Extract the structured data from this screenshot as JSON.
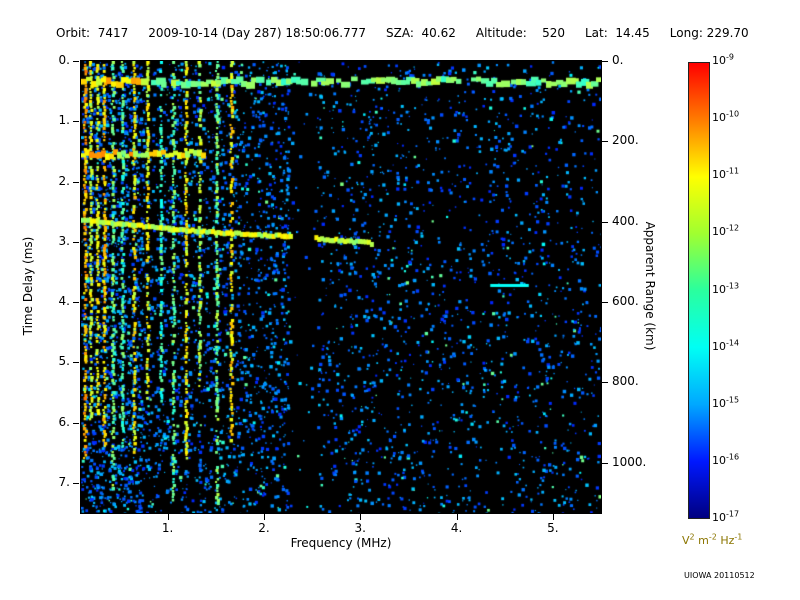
{
  "header": {
    "fields": [
      "Orbit:  7417",
      "2009-10-14 (Day 287) 18:50:06.777",
      "SZA:  40.62",
      "Altitude:    520",
      "Lat:  14.45",
      "Long: 229.70"
    ]
  },
  "footer": {
    "credit": "UIOWA 20110512"
  },
  "chart_data": {
    "type": "heatmap",
    "description": "Radar sounder ionogram: received spectral density vs frequency and time delay",
    "xlabel": "Frequency (MHz)",
    "ylabel_left": "Time Delay (ms)",
    "ylabel_right": "Apparent Range (km)",
    "xlim": [
      0.1,
      5.5
    ],
    "ylim_left": [
      0,
      7.5
    ],
    "ylim_right": [
      0,
      1125
    ],
    "x_tick_labels": [
      "1.",
      "2.",
      "3.",
      "4.",
      "5."
    ],
    "y_tick_labels_left": [
      "0.",
      "1.",
      "2.",
      "3.",
      "4.",
      "5.",
      "6.",
      "7."
    ],
    "y_tick_labels_right": [
      "0.",
      "200.",
      "400.",
      "600.",
      "800.",
      "1000."
    ],
    "grid": false,
    "colorbar": {
      "tick_base": "10",
      "tick_exponents": [
        "-9",
        "-10",
        "-11",
        "-12",
        "-13",
        "-14",
        "-15",
        "-16",
        "-17"
      ],
      "unit_parts": [
        {
          "t": "V",
          "s": "2"
        },
        {
          "t": "m",
          "s": "-2"
        },
        {
          "t": "Hz",
          "s": "-1"
        }
      ],
      "unit_color": "#8b7500",
      "gradient_bottom_to_top": [
        "#000080",
        "#0018ff",
        "#00a8ff",
        "#00fff4",
        "#2aff9e",
        "#a0ff30",
        "#ffff00",
        "#ff7c00",
        "#ff0000"
      ]
    },
    "features": {
      "background_color": "#000000",
      "surface_echo_delay_ms": 0.3,
      "plasma_harmonic_lines_mhz": [
        0.13,
        0.19,
        0.26,
        0.33,
        0.42,
        0.52,
        0.64,
        0.78,
        0.92,
        1.05,
        1.18,
        1.32,
        1.5,
        1.65
      ],
      "mid_band": {
        "delay_ms": 1.5,
        "f": [
          0.1,
          1.35
        ]
      },
      "echo_trace_f_delay": [
        [
          0.1,
          2.62
        ],
        [
          0.5,
          2.7
        ],
        [
          1.0,
          2.78
        ],
        [
          1.6,
          2.85
        ],
        [
          2.2,
          2.9
        ],
        [
          2.7,
          2.96
        ],
        [
          3.1,
          3.02
        ]
      ],
      "cyan_dash": {
        "f": [
          4.35,
          4.75
        ],
        "delay_ms": 3.7
      },
      "attenuation_gap_f": [
        2.28,
        2.52
      ],
      "noise_regions": [
        {
          "f": [
            0.1,
            2.25
          ],
          "density": 0.5
        },
        {
          "f": [
            0.1,
            0.75
          ],
          "density": 0.45
        },
        {
          "f": [
            2.25,
            2.55
          ],
          "density": 0.05
        },
        {
          "f": [
            2.55,
            3.6
          ],
          "density": 0.27
        },
        {
          "f": [
            3.6,
            5.5
          ],
          "density": 0.22
        }
      ]
    }
  }
}
